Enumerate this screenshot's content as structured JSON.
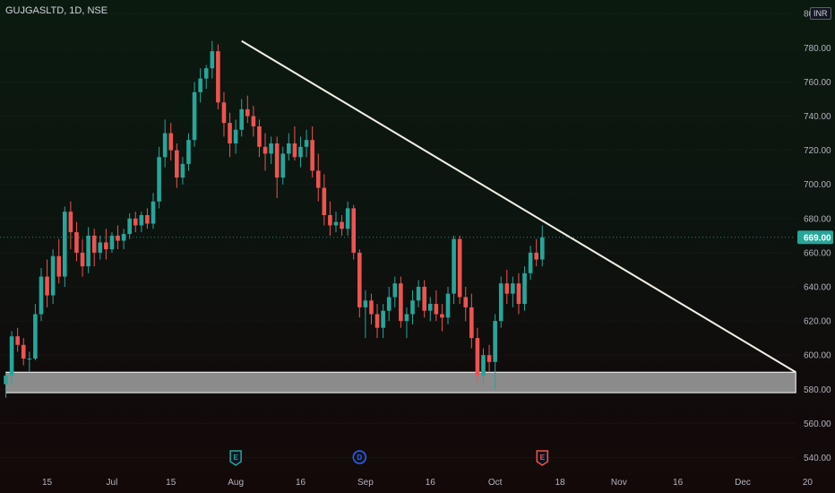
{
  "header": {
    "symbol_line": "GUJGASLTD, 1D, NSE",
    "currency": "INR"
  },
  "colors": {
    "up": "#26a69a",
    "down": "#ef5350",
    "trendline": "#f2f0e4",
    "zone_fill": "#bdbdbd",
    "price_tag": "#26a69a",
    "event_earnings": "#ef5350",
    "event_e_up": "#26a69a",
    "event_dividend": "#2962ff"
  },
  "chart_data": {
    "type": "candlestick",
    "ylim": [
      535,
      808
    ],
    "y_ticks": [
      {
        "value": 800,
        "label": "800.00"
      },
      {
        "value": 780,
        "label": "780.00"
      },
      {
        "value": 760,
        "label": "760.00"
      },
      {
        "value": 740,
        "label": "740.00"
      },
      {
        "value": 720,
        "label": "720.00"
      },
      {
        "value": 700,
        "label": "700.00"
      },
      {
        "value": 680,
        "label": "680.00"
      },
      {
        "value": 660,
        "label": "660.00"
      },
      {
        "value": 640,
        "label": "640.00"
      },
      {
        "value": 620,
        "label": "620.00"
      },
      {
        "value": 600,
        "label": "600.00"
      },
      {
        "value": 580,
        "label": "580.00"
      },
      {
        "value": 560,
        "label": "560.00"
      },
      {
        "value": 540,
        "label": "540.00"
      }
    ],
    "x_ticks": [
      {
        "label": "15",
        "bar": 7
      },
      {
        "label": "Jul",
        "bar": 18
      },
      {
        "label": "15",
        "bar": 28
      },
      {
        "label": "Aug",
        "bar": 39
      },
      {
        "label": "16",
        "bar": 50
      },
      {
        "label": "Sep",
        "bar": 61
      },
      {
        "label": "16",
        "bar": 72
      },
      {
        "label": "Oct",
        "bar": 83
      },
      {
        "label": "18",
        "bar": 94
      },
      {
        "label": "Nov",
        "bar": 104
      },
      {
        "label": "16",
        "bar": 114
      },
      {
        "label": "Dec",
        "bar": 125
      },
      {
        "label": "20",
        "bar": 136
      }
    ],
    "ohlc": [
      [
        583,
        590,
        575,
        588
      ],
      [
        588,
        614,
        583,
        611
      ],
      [
        611,
        616,
        602,
        606
      ],
      [
        606,
        610,
        594,
        598
      ],
      [
        598,
        602,
        590,
        598
      ],
      [
        598,
        630,
        597,
        624
      ],
      [
        624,
        651,
        620,
        646
      ],
      [
        646,
        656,
        628,
        635
      ],
      [
        635,
        662,
        630,
        658
      ],
      [
        658,
        668,
        642,
        646
      ],
      [
        646,
        687,
        640,
        684
      ],
      [
        684,
        690,
        662,
        672
      ],
      [
        672,
        678,
        655,
        660
      ],
      [
        660,
        668,
        646,
        652
      ],
      [
        652,
        675,
        648,
        670
      ],
      [
        670,
        674,
        652,
        660
      ],
      [
        660,
        670,
        656,
        666
      ],
      [
        666,
        674,
        656,
        662
      ],
      [
        662,
        672,
        660,
        670
      ],
      [
        670,
        676,
        662,
        667
      ],
      [
        667,
        674,
        662,
        671
      ],
      [
        671,
        683,
        668,
        680
      ],
      [
        680,
        684,
        672,
        676
      ],
      [
        676,
        684,
        672,
        682
      ],
      [
        682,
        686,
        674,
        677
      ],
      [
        677,
        695,
        674,
        690
      ],
      [
        690,
        722,
        686,
        716
      ],
      [
        716,
        738,
        710,
        730
      ],
      [
        730,
        736,
        714,
        720
      ],
      [
        720,
        724,
        698,
        704
      ],
      [
        704,
        716,
        700,
        712
      ],
      [
        712,
        730,
        708,
        726
      ],
      [
        726,
        760,
        722,
        754
      ],
      [
        754,
        768,
        748,
        762
      ],
      [
        762,
        770,
        756,
        768
      ],
      [
        768,
        784,
        762,
        778
      ],
      [
        778,
        782,
        744,
        748
      ],
      [
        748,
        754,
        728,
        736
      ],
      [
        736,
        742,
        716,
        724
      ],
      [
        724,
        738,
        718,
        732
      ],
      [
        732,
        750,
        728,
        744
      ],
      [
        744,
        752,
        736,
        740
      ],
      [
        740,
        746,
        728,
        734
      ],
      [
        734,
        738,
        716,
        722
      ],
      [
        722,
        730,
        708,
        718
      ],
      [
        718,
        728,
        712,
        724
      ],
      [
        724,
        728,
        692,
        704
      ],
      [
        704,
        722,
        700,
        718
      ],
      [
        718,
        730,
        714,
        724
      ],
      [
        724,
        734,
        714,
        716
      ],
      [
        716,
        728,
        710,
        722
      ],
      [
        722,
        732,
        716,
        726
      ],
      [
        726,
        734,
        704,
        708
      ],
      [
        708,
        718,
        690,
        698
      ],
      [
        698,
        706,
        676,
        682
      ],
      [
        682,
        690,
        670,
        676
      ],
      [
        676,
        684,
        672,
        678
      ],
      [
        678,
        682,
        670,
        674
      ],
      [
        674,
        690,
        670,
        686
      ],
      [
        686,
        688,
        656,
        660
      ],
      [
        660,
        662,
        622,
        628
      ],
      [
        628,
        638,
        610,
        632
      ],
      [
        632,
        636,
        618,
        624
      ],
      [
        624,
        630,
        610,
        616
      ],
      [
        616,
        630,
        610,
        626
      ],
      [
        626,
        640,
        620,
        634
      ],
      [
        634,
        646,
        628,
        642
      ],
      [
        642,
        646,
        616,
        620
      ],
      [
        620,
        628,
        610,
        624
      ],
      [
        624,
        638,
        618,
        632
      ],
      [
        632,
        644,
        628,
        640
      ],
      [
        640,
        644,
        622,
        626
      ],
      [
        626,
        634,
        620,
        630
      ],
      [
        630,
        638,
        620,
        624
      ],
      [
        624,
        630,
        614,
        622
      ],
      [
        622,
        640,
        618,
        636
      ],
      [
        636,
        670,
        630,
        668
      ],
      [
        668,
        670,
        630,
        634
      ],
      [
        634,
        640,
        620,
        628
      ],
      [
        628,
        636,
        604,
        610
      ],
      [
        610,
        616,
        584,
        588
      ],
      [
        588,
        604,
        584,
        600
      ],
      [
        600,
        606,
        590,
        596
      ],
      [
        596,
        624,
        580,
        620
      ],
      [
        620,
        646,
        616,
        642
      ],
      [
        642,
        650,
        630,
        636
      ],
      [
        636,
        646,
        628,
        642
      ],
      [
        642,
        648,
        624,
        630
      ],
      [
        630,
        652,
        626,
        648
      ],
      [
        648,
        664,
        644,
        660
      ],
      [
        660,
        668,
        652,
        656
      ],
      [
        656,
        676,
        652,
        669
      ]
    ],
    "trendline": {
      "from": {
        "bar": 40,
        "price": 784
      },
      "to": {
        "bar": 134,
        "price": 590
      }
    },
    "support_zone": {
      "from_bar": 0,
      "to_bar": 134,
      "low": 578,
      "high": 590
    },
    "last_price": {
      "value": 669,
      "label": "669.00"
    },
    "events": [
      {
        "letter": "E",
        "bar": 39,
        "kind": "e_up"
      },
      {
        "letter": "D",
        "bar": 60,
        "kind": "dividend"
      },
      {
        "letter": "E",
        "bar": 91,
        "kind": "earnings"
      }
    ]
  }
}
